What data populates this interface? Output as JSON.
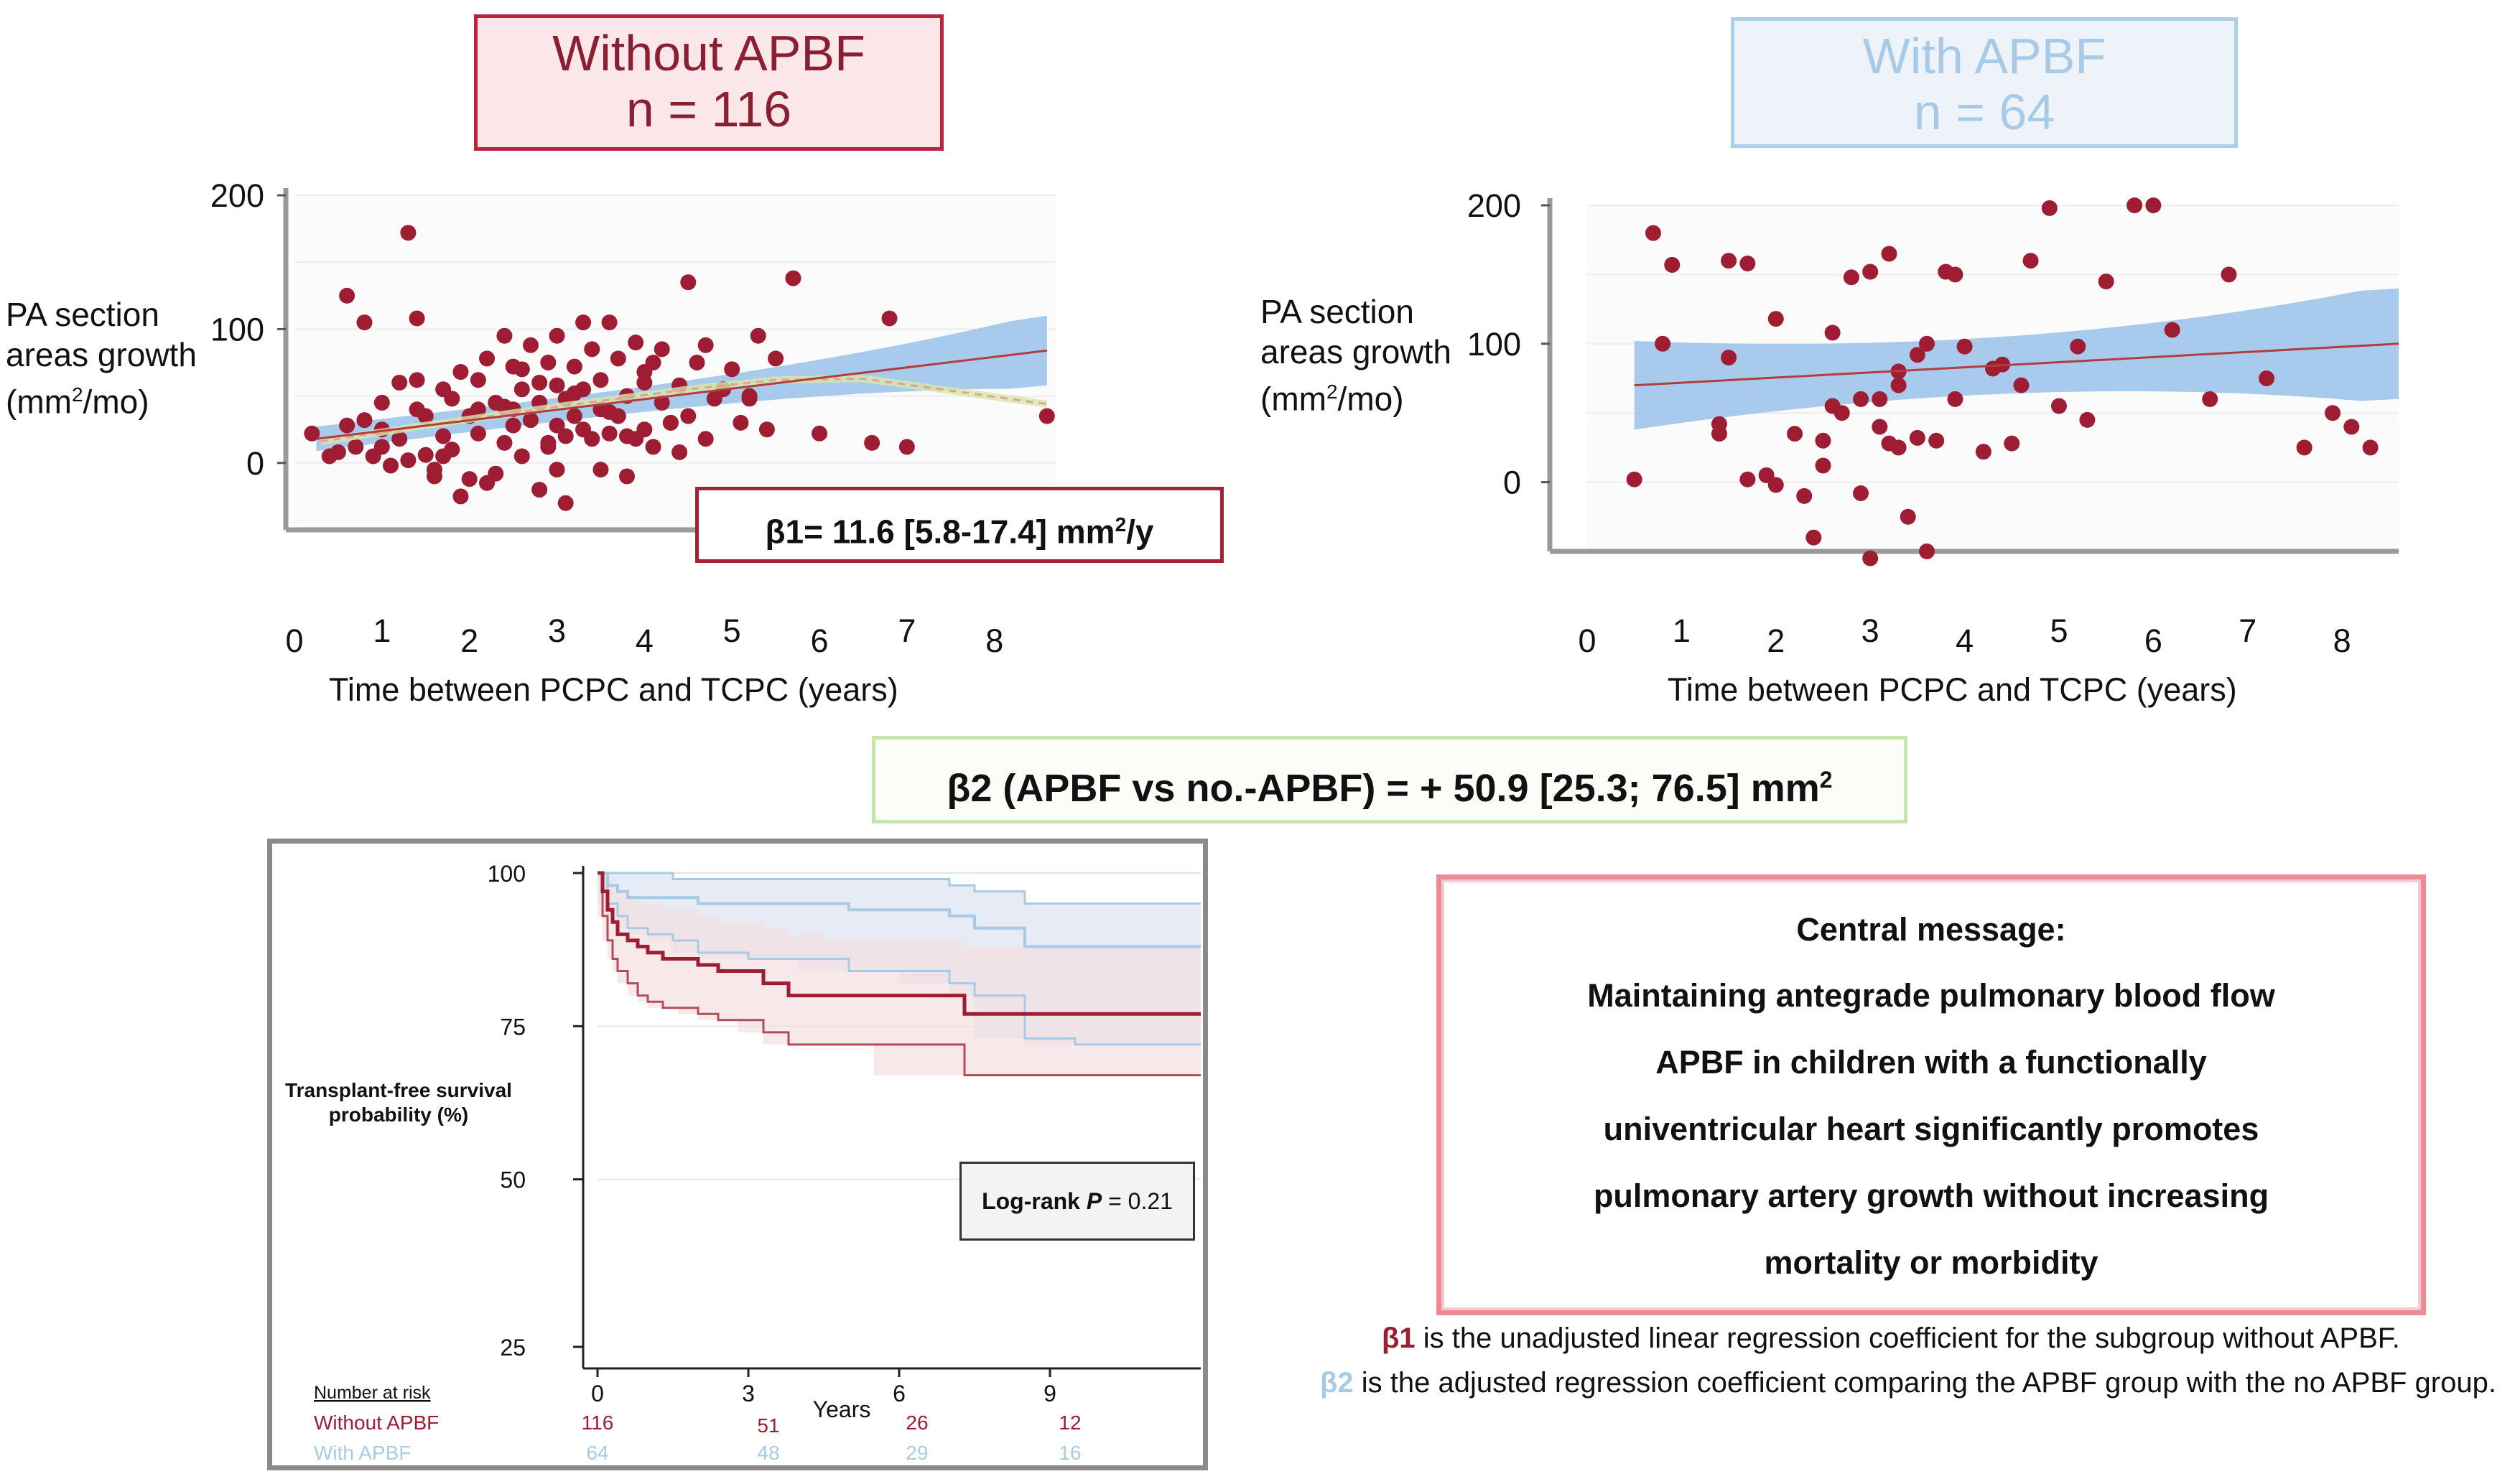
{
  "colors": {
    "without": "#9e1d33",
    "with": "#a7cbe6",
    "band": "#99c2ea",
    "message_border": "#ec8a96",
    "beta2_border": "#c6e4ad"
  },
  "panels": {
    "left_title": {
      "line1": "Without APBF",
      "line2": "n = 116"
    },
    "right_title": {
      "line1": "With APBF",
      "line2": "n = 64"
    }
  },
  "axes": {
    "ylabel_line1": "PA section",
    "ylabel_line2a": "areas growth",
    "ylabel_line3_pre": "(mm",
    "ylabel_line3_sup": "2",
    "ylabel_line3_post": "/mo)",
    "xlabel": "Time between PCPC and TCPC (years)",
    "xlabel_right": "Time between PCPC and TCPC (years)"
  },
  "beta1": {
    "pre": "β1= 11.6 [5.8-17.4] mm",
    "sup": "2",
    "post": "/y"
  },
  "beta2": {
    "pre": "β2 (APBF vs no.-APBF) = + 50.9 [25.3; 76.5] mm",
    "sup": "2"
  },
  "message": {
    "title": "Central message:",
    "lines": [
      "Maintaining antegrade pulmonary blood flow",
      "APBF in children with a functionally",
      "univentricular heart significantly promotes",
      "pulmonary artery growth without increasing",
      "mortality or morbidity"
    ]
  },
  "notes": {
    "b1_sym": "β1",
    "b1_text": " is the unadjusted linear regression coefficient for the subgroup without APBF.",
    "b2_sym": "β2",
    "b2_text": " is the adjusted regression coefficient comparing the APBF group with the no APBF group."
  },
  "km": {
    "ylabel_line1": "Transplant-free survival",
    "ylabel_line2": "probability (%)",
    "xlabel": "Years",
    "logrank_pre": "Log-rank ",
    "logrank_p": "P",
    "logrank_val": " = 0.21",
    "risk_header": "Number at risk",
    "risk_rows": [
      {
        "label": "Without APBF",
        "values": [
          "116",
          "51",
          "26",
          "12"
        ]
      },
      {
        "label": "With APBF",
        "values": [
          "64",
          "48",
          "29",
          "16"
        ]
      }
    ]
  },
  "chart_data": [
    {
      "type": "scatter",
      "title": "Without APBF n = 116",
      "xlabel": "Time between PCPC and TCPC (years)",
      "ylabel": "PA section areas growth (mm2/mo)",
      "xlim": [
        0,
        8.7
      ],
      "ylim": [
        -50,
        200
      ],
      "xticks": [
        "0",
        "1",
        "2",
        "3",
        "4",
        "5",
        "6",
        "7",
        "8"
      ],
      "yticks": [
        "200",
        "100",
        "0"
      ],
      "regression": {
        "x": [
          0.25,
          8.6
        ],
        "y": [
          18,
          84
        ],
        "band_upper": [
          28,
          110
        ],
        "band_lower": [
          8,
          58
        ]
      },
      "loess": {
        "x": [
          0.3,
          1.5,
          3,
          4.5,
          5.5,
          6.5,
          7.5,
          8.6
        ],
        "y": [
          16,
          28,
          42,
          55,
          62,
          63,
          54,
          44
        ]
      },
      "x": [
        0.2,
        0.4,
        0.5,
        0.6,
        0.7,
        0.8,
        0.8,
        0.9,
        1.0,
        1.0,
        1.1,
        1.2,
        1.2,
        1.3,
        1.3,
        1.4,
        1.4,
        1.5,
        1.5,
        1.6,
        1.6,
        1.7,
        1.7,
        1.8,
        1.8,
        1.9,
        1.9,
        2.0,
        2.0,
        2.1,
        2.1,
        2.2,
        2.2,
        2.3,
        2.3,
        2.4,
        2.4,
        2.5,
        2.5,
        2.6,
        2.6,
        2.6,
        2.7,
        2.7,
        2.8,
        2.8,
        2.8,
        2.9,
        2.9,
        3.0,
        3.0,
        3.0,
        3.1,
        3.1,
        3.1,
        3.2,
        3.2,
        3.3,
        3.3,
        3.3,
        3.4,
        3.4,
        3.5,
        3.5,
        3.5,
        3.6,
        3.6,
        3.7,
        3.7,
        3.8,
        3.8,
        3.9,
        3.9,
        4.0,
        4.0,
        4.1,
        4.1,
        4.2,
        4.2,
        4.3,
        4.4,
        4.4,
        4.5,
        4.5,
        4.6,
        4.7,
        4.8,
        4.9,
        5.0,
        5.1,
        5.2,
        5.3,
        5.4,
        5.5,
        5.7,
        6.0,
        6.6,
        6.8,
        7.0,
        8.6,
        0.6,
        1.0,
        1.4,
        1.7,
        2.1,
        2.5,
        2.9,
        3.2,
        3.6,
        4.0,
        4.3,
        4.7,
        5.2,
        3.8,
        2.4,
        3.0
      ],
      "y": [
        22,
        5,
        8,
        125,
        12,
        105,
        32,
        5,
        45,
        25,
        -2,
        60,
        18,
        2,
        172,
        108,
        40,
        6,
        35,
        -5,
        -10,
        55,
        20,
        48,
        10,
        68,
        -25,
        35,
        -12,
        62,
        22,
        78,
        -15,
        45,
        -8,
        95,
        15,
        40,
        28,
        55,
        70,
        5,
        88,
        32,
        -20,
        60,
        45,
        75,
        12,
        58,
        -5,
        95,
        48,
        20,
        -30,
        72,
        35,
        25,
        105,
        55,
        18,
        85,
        40,
        -5,
        62,
        105,
        22,
        78,
        35,
        50,
        -10,
        90,
        18,
        68,
        25,
        75,
        12,
        45,
        85,
        30,
        58,
        8,
        135,
        35,
        75,
        18,
        48,
        55,
        70,
        30,
        50,
        95,
        25,
        78,
        138,
        22,
        15,
        108,
        12,
        35,
        28,
        12,
        62,
        5,
        40,
        72,
        15,
        52,
        38,
        60,
        30,
        88,
        48,
        20,
        42,
        28
      ],
      "categories": [],
      "values": []
    },
    {
      "type": "scatter",
      "title": "With APBF n = 64",
      "xlabel": "Time between PCPC and TCPC (years)",
      "ylabel": "PA section areas growth (mm2/mo)",
      "xlim": [
        0,
        8.6
      ],
      "ylim": [
        -50,
        200
      ],
      "xticks": [
        "0",
        "1",
        "2",
        "3",
        "4",
        "5",
        "6",
        "7",
        "8"
      ],
      "yticks": [
        "200",
        "100",
        "0"
      ],
      "regression": {
        "x": [
          0.5,
          8.6
        ],
        "y": [
          70,
          100
        ],
        "band_upper": [
          105,
          140
        ],
        "band_lower": [
          35,
          60
        ]
      },
      "x": [
        0.5,
        0.7,
        0.9,
        1.4,
        1.4,
        1.5,
        1.7,
        1.7,
        1.9,
        2.0,
        2.0,
        2.2,
        2.3,
        2.4,
        2.5,
        2.6,
        2.7,
        2.8,
        2.9,
        2.9,
        3.0,
        3.0,
        3.1,
        3.1,
        3.2,
        3.2,
        3.3,
        3.3,
        3.4,
        3.5,
        3.5,
        3.6,
        3.6,
        3.7,
        3.8,
        3.9,
        4.0,
        4.2,
        4.3,
        4.5,
        4.6,
        4.7,
        4.9,
        5.0,
        5.2,
        5.5,
        5.8,
        6.0,
        6.6,
        6.8,
        7.6,
        7.9,
        8.1,
        8.3,
        0.8,
        1.5,
        2.6,
        3.3,
        4.4,
        5.3,
        6.2,
        7.2,
        3.9,
        2.5
      ],
      "y": [
        2,
        180,
        157,
        35,
        42,
        160,
        158,
        2,
        5,
        -2,
        118,
        35,
        -10,
        -40,
        12,
        108,
        50,
        148,
        -8,
        60,
        -55,
        152,
        40,
        60,
        28,
        165,
        25,
        80,
        -25,
        32,
        92,
        -50,
        100,
        30,
        152,
        150,
        98,
        22,
        82,
        28,
        70,
        160,
        198,
        55,
        98,
        145,
        200,
        200,
        60,
        150,
        25,
        50,
        40,
        25,
        100,
        90,
        55,
        70,
        85,
        45,
        110,
        75,
        60,
        30
      ],
      "categories": [],
      "values": []
    },
    {
      "type": "line",
      "title": "Transplant-free survival",
      "xlabel": "Years",
      "ylabel": "Transplant-free survival probability (%)",
      "xlim": [
        0,
        12
      ],
      "ylim": [
        25,
        100
      ],
      "xticks": [
        "0",
        "3",
        "6",
        "9"
      ],
      "yticks": [
        "100",
        "75",
        "50",
        "25"
      ],
      "series": [
        {
          "name": "Without APBF",
          "x": [
            0,
            0.1,
            0.2,
            0.3,
            0.4,
            0.6,
            0.8,
            1.0,
            1.3,
            1.6,
            2.0,
            2.4,
            2.8,
            3.3,
            3.8,
            4.5,
            5.5,
            7.3,
            12
          ],
          "y": [
            100,
            97,
            94,
            92,
            90,
            89,
            88,
            87,
            86,
            86,
            85,
            84,
            84,
            82,
            80,
            80,
            80,
            77,
            77
          ],
          "lower": [
            100,
            93,
            89,
            86,
            84,
            82,
            80,
            79,
            78,
            78,
            77,
            76,
            76,
            74,
            72,
            72,
            72,
            67,
            67
          ],
          "upper": [
            100,
            100,
            99,
            98,
            97,
            96,
            95,
            95,
            94,
            94,
            93,
            92,
            92,
            91,
            90,
            89,
            89,
            88,
            88
          ]
        },
        {
          "name": "With APBF",
          "x": [
            0,
            0.2,
            0.4,
            0.6,
            1.0,
            1.5,
            2.0,
            3.0,
            4.0,
            5.0,
            6.0,
            7.0,
            7.5,
            8.5,
            9.5,
            12
          ],
          "y": [
            100,
            98,
            97,
            96,
            96,
            96,
            95,
            95,
            95,
            94,
            94,
            93,
            91,
            88,
            88,
            88
          ],
          "lower": [
            100,
            95,
            93,
            91,
            90,
            89,
            87,
            86,
            86,
            84,
            84,
            82,
            80,
            73,
            72,
            72
          ],
          "upper": [
            100,
            100,
            100,
            100,
            100,
            99,
            99,
            99,
            99,
            99,
            99,
            98,
            97,
            95,
            95,
            95
          ]
        }
      ]
    }
  ]
}
